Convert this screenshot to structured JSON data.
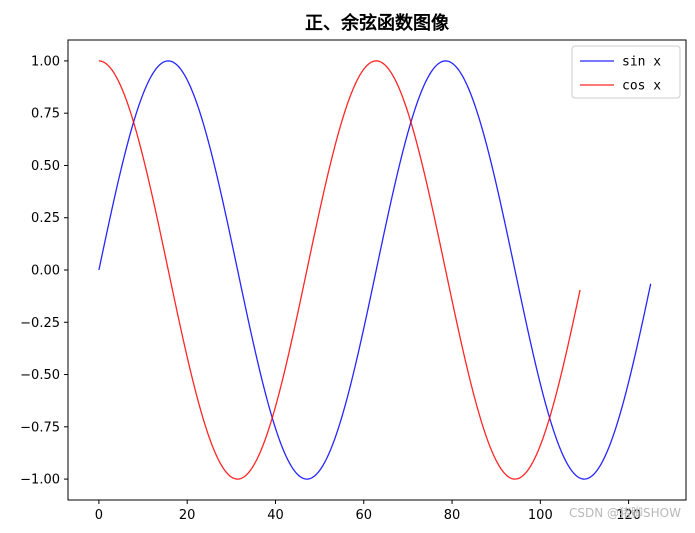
{
  "chart_data": {
    "type": "line",
    "title": "正、余弦函数图像",
    "xlabel": "",
    "ylabel": "",
    "xlim": [
      -7,
      133
    ],
    "ylim": [
      -1.1,
      1.1
    ],
    "x_ticks": [
      0,
      20,
      40,
      60,
      80,
      100,
      120
    ],
    "y_ticks": [
      -1.0,
      -0.75,
      -0.5,
      -0.25,
      0.0,
      0.25,
      0.5,
      0.75,
      1.0
    ],
    "x_tick_labels": [
      "0",
      "20",
      "40",
      "60",
      "80",
      "100",
      "120"
    ],
    "y_tick_labels": [
      "−1.00",
      "−0.75",
      "−0.50",
      "−0.25",
      "0.00",
      "0.25",
      "0.50",
      "0.75",
      "1.00"
    ],
    "grid": false,
    "legend_position": "top-right",
    "series": [
      {
        "name": "sin x",
        "function": "sin",
        "color": "#0000ff",
        "x_start": 0,
        "x_end": 125,
        "period": 62.83
      },
      {
        "name": "cos x",
        "function": "cos",
        "color": "#ff0000",
        "x_start": 0,
        "x_end": 109,
        "period": 62.83
      }
    ]
  },
  "watermark": "CSDN @猪脚SHOW"
}
